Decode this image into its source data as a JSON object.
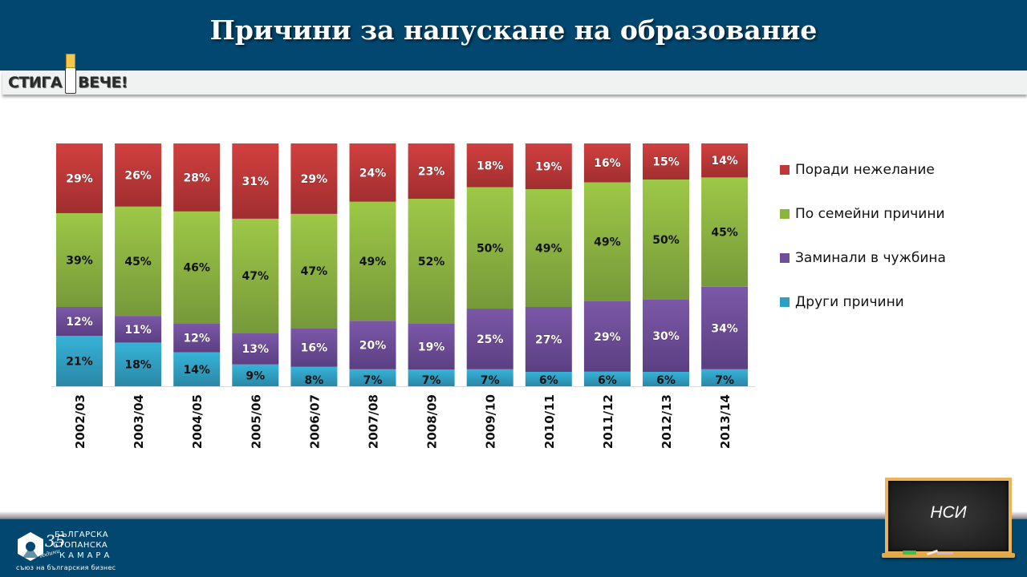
{
  "header": {
    "title": "Причини за напускане на образование"
  },
  "brand_logo": {
    "left_text": "СТИГА",
    "right_text": "ВЕЧЕ!"
  },
  "footer": {
    "org_line1": "БЪЛГАРСКА",
    "org_line2": "СТОПАНСКА",
    "org_line3": "КАМАРА",
    "anniversary": "35",
    "anniversary_word": "години",
    "slogan": "съюз на българския бизнес"
  },
  "source_board": {
    "text": "НСИ"
  },
  "colors": {
    "header_bg": "#02476f",
    "red": "#c0373a",
    "green": "#8cb53c",
    "purple": "#6e4f98",
    "cyan": "#2f9fc3"
  },
  "chart_data": {
    "type": "bar",
    "stacked": true,
    "title": "Причини за напускане на образование",
    "xlabel": "",
    "ylabel": "",
    "ylim": [
      0,
      100
    ],
    "unit": "%",
    "grid": false,
    "legend_position": "right",
    "categories": [
      "2002/03",
      "2003/04",
      "2004/05",
      "2005/06",
      "2006/07",
      "2007/08",
      "2008/09",
      "2009/10",
      "2010/11",
      "2011/12",
      "2012/13",
      "2013/14"
    ],
    "series": [
      {
        "name": "Други причини",
        "color": "#2f9fc3",
        "label_color": "#111111",
        "values": [
          21,
          18,
          14,
          9,
          8,
          7,
          7,
          7,
          6,
          6,
          6,
          7
        ]
      },
      {
        "name": "Заминали в чужбина",
        "color": "#6e4f98",
        "label_color": "#ffffff",
        "values": [
          12,
          11,
          12,
          13,
          16,
          20,
          19,
          25,
          27,
          29,
          30,
          34
        ]
      },
      {
        "name": "По семейни причини",
        "color": "#8cb53c",
        "label_color": "#111111",
        "values": [
          39,
          45,
          46,
          47,
          47,
          49,
          52,
          50,
          49,
          49,
          50,
          45
        ]
      },
      {
        "name": "Поради нежелание",
        "color": "#c0373a",
        "label_color": "#ffffff",
        "values": [
          29,
          26,
          28,
          31,
          29,
          24,
          23,
          18,
          19,
          16,
          15,
          14
        ]
      }
    ],
    "legend_order": [
      "Поради нежелание",
      "По семейни причини",
      "Заминали в чужбина",
      "Други причини"
    ]
  }
}
